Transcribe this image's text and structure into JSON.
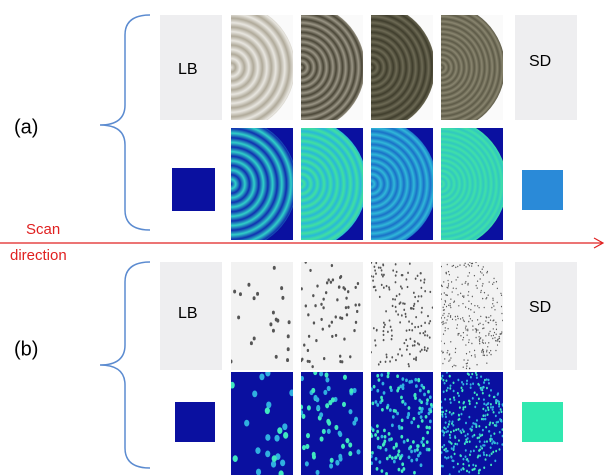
{
  "panels": [
    {
      "label": "(a)",
      "left": "LB",
      "right": "SD"
    },
    {
      "label": "(b)",
      "left": "LB",
      "right": "SD"
    }
  ],
  "arrow": {
    "line1": "Scan",
    "line2": "direction"
  }
}
